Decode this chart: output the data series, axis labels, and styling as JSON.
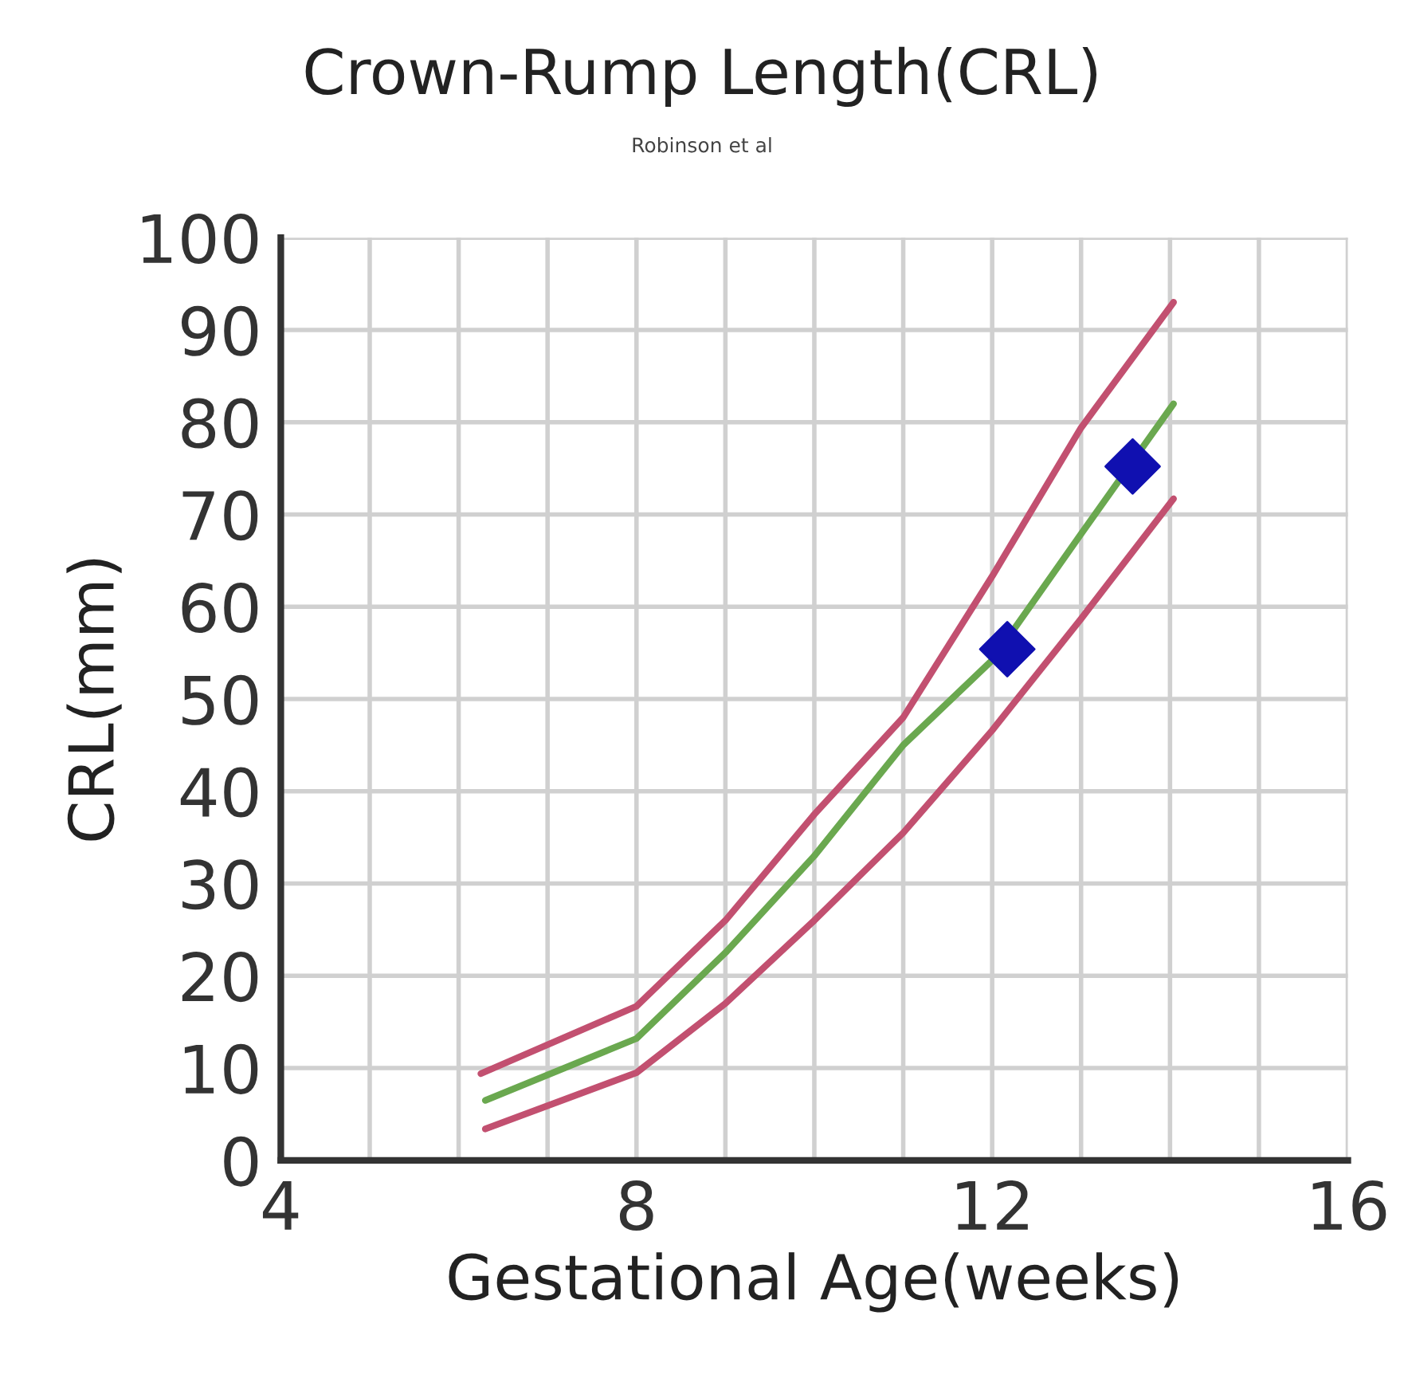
{
  "chart_data": {
    "type": "line",
    "title": "Crown-Rump Length(CRL)",
    "subtitle": "Robinson et al",
    "xlabel": "Gestational Age(weeks)",
    "ylabel": "CRL(mm)",
    "xlim": [
      4,
      16
    ],
    "xticks": [
      4,
      {
        "value": 5,
        "label": null
      },
      {
        "value": 6,
        "label": null
      },
      {
        "value": 7,
        "label": null
      },
      8,
      {
        "value": 9,
        "label": null
      },
      {
        "value": 10,
        "label": null
      },
      {
        "value": 11,
        "label": null
      },
      12,
      {
        "value": 13,
        "label": null
      },
      {
        "value": 14,
        "label": null
      },
      {
        "value": 15,
        "label": null
      },
      16
    ],
    "ylim": [
      0,
      100
    ],
    "yticks": [
      0,
      10,
      20,
      30,
      40,
      50,
      60,
      70,
      80,
      90,
      100
    ],
    "grid": true,
    "legend": false,
    "series": [
      {
        "color": "#c25070",
        "marker": "none",
        "x": [
          6.25,
          8,
          9,
          10,
          11,
          12,
          13,
          14.04
        ],
        "values": [
          9.4,
          16.7,
          26,
          37.5,
          48,
          63.3,
          79.4,
          93
        ]
      },
      {
        "color": "#6aa84f",
        "marker": "none",
        "x": [
          6.3,
          8,
          9,
          10,
          11,
          12,
          13,
          14.04
        ],
        "values": [
          6.5,
          13.2,
          22.5,
          33,
          45,
          54.2,
          67.9,
          82
        ]
      },
      {
        "color": "#c25070",
        "marker": "none",
        "x": [
          6.3,
          8,
          9,
          10,
          11,
          12,
          13,
          14.04
        ],
        "values": [
          3.4,
          9.5,
          17,
          26,
          35.5,
          46.6,
          58.7,
          71.7
        ]
      },
      {
        "type": "scatter",
        "color": "#1010b0",
        "marker": "diamond",
        "x": [
          12.17,
          13.58
        ],
        "values": [
          55.4,
          75.2
        ]
      }
    ]
  }
}
